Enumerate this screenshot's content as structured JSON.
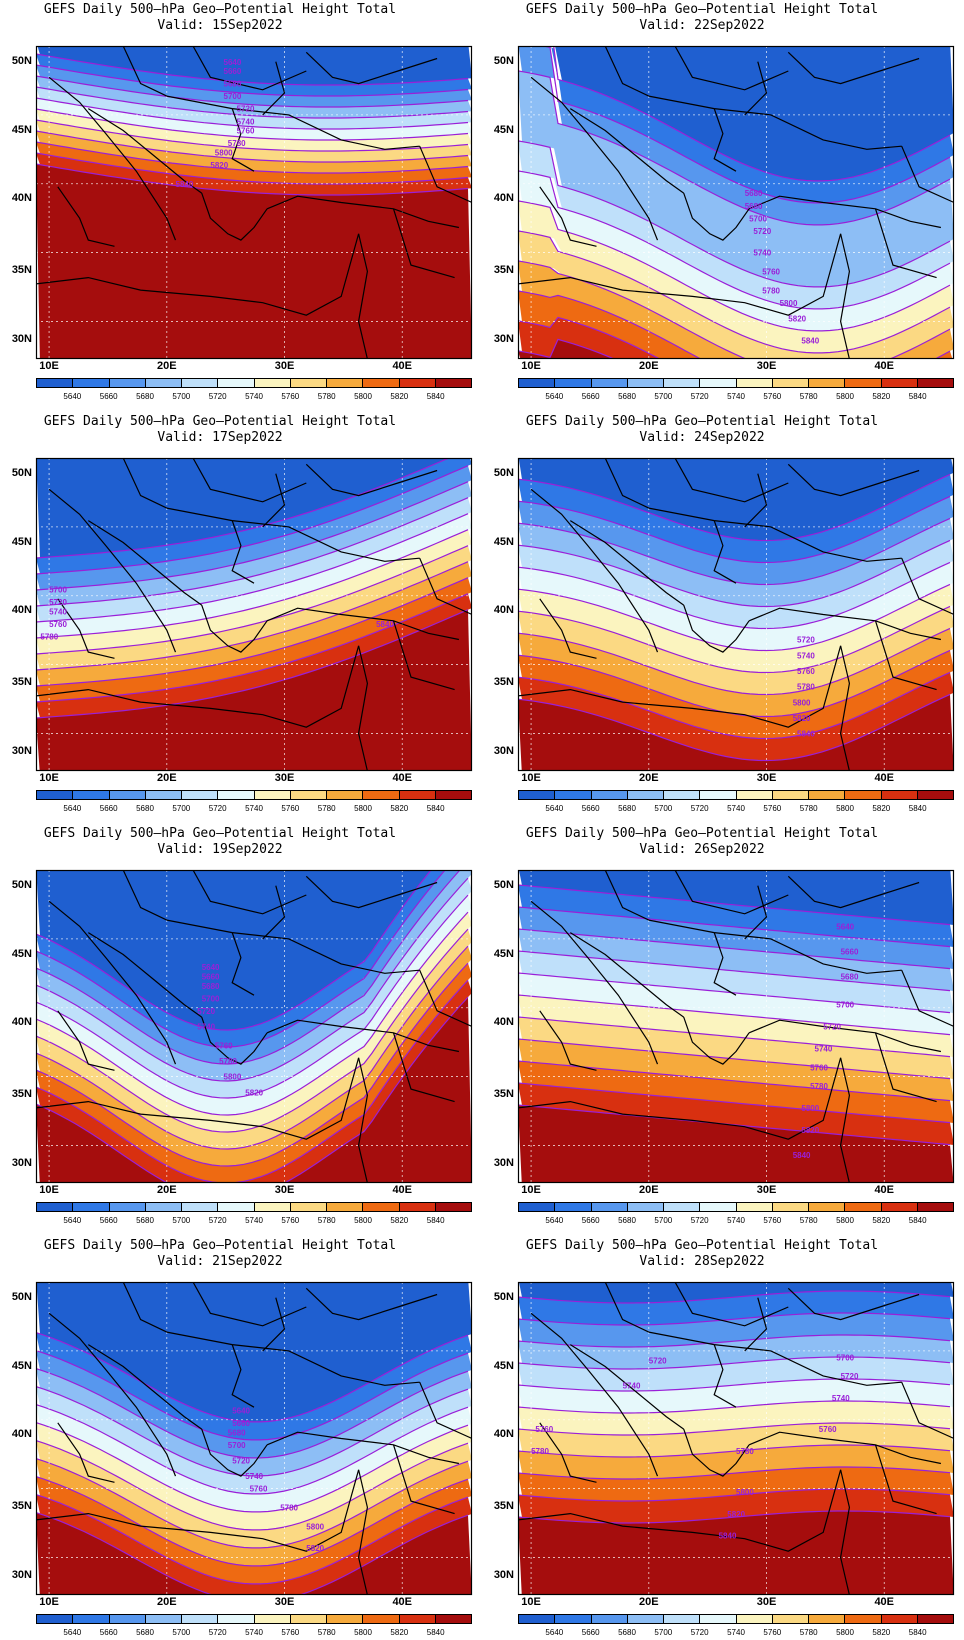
{
  "colorbar": {
    "labels": [
      "5640",
      "5660",
      "5680",
      "5700",
      "5720",
      "5740",
      "5760",
      "5780",
      "5800",
      "5820",
      "5840"
    ],
    "colors": [
      "#1f5fd0",
      "#2f78e6",
      "#5797ee",
      "#8dbef5",
      "#bfe0fa",
      "#e6f8fb",
      "#fbf4bf",
      "#fbd983",
      "#f6aa3c",
      "#ee6a12",
      "#d83010",
      "#a50d0d"
    ]
  },
  "axes": {
    "lat_labels": [
      "50N",
      "45N",
      "40N",
      "35N",
      "30N"
    ],
    "lon_labels": [
      "10E",
      "20E",
      "30E",
      "40E"
    ]
  },
  "panels": [
    {
      "title": "GEFS Daily 500–hPa Geo–Potential Height Total",
      "valid": "Valid: 15Sep2022",
      "contour_labels": [
        "5640",
        "5660",
        "5680",
        "5700",
        "5720",
        "5740",
        "5760",
        "5780",
        "5800",
        "5820",
        "5840"
      ]
    },
    {
      "title": "GEFS Daily 500–hPa Geo–Potential Height Total",
      "valid": "Valid: 22Sep2022",
      "contour_labels": [
        "5680",
        "5680",
        "5700",
        "5720",
        "5740",
        "5760",
        "5780",
        "5800",
        "5820",
        "5840"
      ]
    },
    {
      "title": "GEFS Daily 500–hPa Geo–Potential Height Total",
      "valid": "Valid: 17Sep2022",
      "contour_labels": [
        "5700",
        "5720",
        "5740",
        "5760",
        "5780",
        "5840"
      ]
    },
    {
      "title": "GEFS Daily 500–hPa Geo–Potential Height Total",
      "valid": "Valid: 24Sep2022",
      "contour_labels": [
        "5720",
        "5740",
        "5760",
        "5780",
        "5800",
        "5820",
        "5840"
      ]
    },
    {
      "title": "GEFS Daily 500–hPa Geo–Potential Height Total",
      "valid": "Valid: 19Sep2022",
      "contour_labels": [
        "5640",
        "5660",
        "5680",
        "5700",
        "5720",
        "5740",
        "5760",
        "5780",
        "5800",
        "5820"
      ]
    },
    {
      "title": "GEFS Daily 500–hPa Geo–Potential Height Total",
      "valid": "Valid: 26Sep2022",
      "contour_labels": [
        "5640",
        "5660",
        "5680",
        "5700",
        "5720",
        "5740",
        "5760",
        "5780",
        "5800",
        "5820",
        "5840"
      ]
    },
    {
      "title": "GEFS Daily 500–hPa Geo–Potential Height Total",
      "valid": "Valid: 21Sep2022",
      "contour_labels": [
        "5640",
        "5660",
        "5680",
        "5700",
        "5720",
        "5740",
        "5760",
        "5780",
        "5800",
        "5820"
      ]
    },
    {
      "title": "GEFS Daily 500–hPa Geo–Potential Height Total",
      "valid": "Valid: 28Sep2022",
      "contour_labels": [
        "5700",
        "5720",
        "5720",
        "5740",
        "5740",
        "5760",
        "5760",
        "5780",
        "5780",
        "5800",
        "5820",
        "5840"
      ]
    }
  ]
}
